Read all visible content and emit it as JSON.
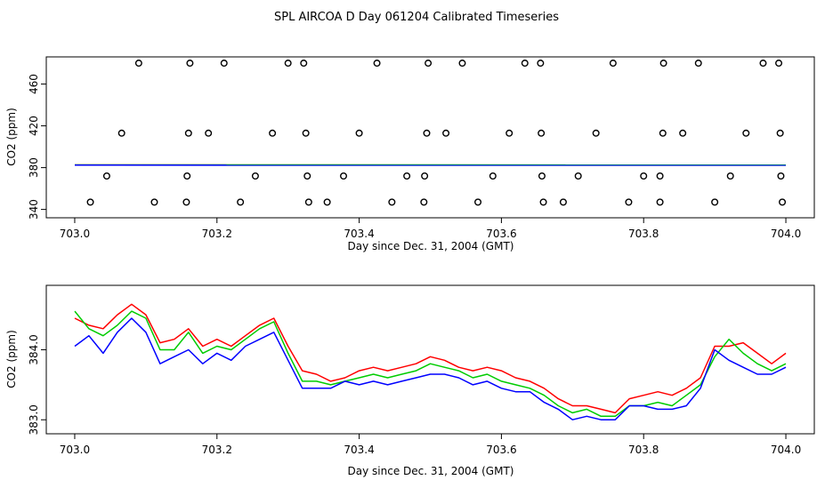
{
  "title": "SPL AIRCOA D  Day 061204  Calibrated Timeseries",
  "chart_data": [
    {
      "type": "scatter",
      "title": "",
      "xlabel": "Day since Dec. 31, 2004 (GMT)",
      "ylabel": "CO2 (ppm)",
      "xlim": [
        702.96,
        704.04
      ],
      "ylim": [
        332,
        486
      ],
      "xticks": [
        703.0,
        703.2,
        703.4,
        703.6,
        703.8,
        704.0
      ],
      "xtick_labels": [
        "703.0",
        "703.2",
        "703.4",
        "703.6",
        "703.8",
        "704.0"
      ],
      "yticks": [
        340,
        380,
        420,
        460
      ],
      "ytick_labels": [
        "340",
        "380",
        "420",
        "460"
      ],
      "points": {
        "y480": [
          703.09,
          703.162,
          703.21,
          703.3,
          703.322,
          703.425,
          703.497,
          703.545,
          703.633,
          703.655,
          703.757,
          703.828,
          703.877,
          703.968,
          703.99
        ],
        "y413": [
          703.066,
          703.16,
          703.188,
          703.278,
          703.325,
          703.4,
          703.495,
          703.522,
          703.611,
          703.656,
          703.733,
          703.827,
          703.855,
          703.944,
          703.992
        ],
        "y372": [
          703.045,
          703.158,
          703.254,
          703.327,
          703.378,
          703.467,
          703.492,
          703.588,
          703.657,
          703.708,
          703.8,
          703.823,
          703.922,
          703.993
        ],
        "y347": [
          703.022,
          703.112,
          703.157,
          703.233,
          703.329,
          703.355,
          703.446,
          703.491,
          703.567,
          703.659,
          703.687,
          703.779,
          703.823,
          703.9,
          703.995
        ]
      },
      "flat_series": [
        {
          "name": "red",
          "color": "#ff0000",
          "x": [
            703.0,
            704.0
          ],
          "y": [
            382.5,
            382.4
          ]
        },
        {
          "name": "green",
          "color": "#00cc00",
          "x": [
            703.0,
            704.0
          ],
          "y": [
            382.6,
            382.5
          ]
        },
        {
          "name": "blue",
          "color": "#0000ff",
          "x": [
            703.0,
            704.0
          ],
          "y": [
            382.4,
            382.3
          ]
        }
      ]
    },
    {
      "type": "line",
      "title": "",
      "xlabel": "Day since Dec. 31, 2004 (GMT)",
      "ylabel": "CO2 (ppm)",
      "xlim": [
        702.96,
        704.04
      ],
      "ylim": [
        382.8,
        384.92
      ],
      "xticks": [
        703.0,
        703.2,
        703.4,
        703.6,
        703.8,
        704.0
      ],
      "xtick_labels": [
        "703.0",
        "703.2",
        "703.4",
        "703.6",
        "703.8",
        "704.0"
      ],
      "yticks": [
        383.0,
        384.0
      ],
      "ytick_labels": [
        "383.0",
        "384.0"
      ],
      "x": [
        703.0,
        703.02,
        703.04,
        703.06,
        703.08,
        703.1,
        703.12,
        703.14,
        703.16,
        703.18,
        703.2,
        703.22,
        703.24,
        703.26,
        703.28,
        703.3,
        703.32,
        703.34,
        703.36,
        703.38,
        703.4,
        703.42,
        703.44,
        703.46,
        703.48,
        703.5,
        703.52,
        703.54,
        703.56,
        703.58,
        703.6,
        703.62,
        703.64,
        703.66,
        703.68,
        703.7,
        703.72,
        703.74,
        703.76,
        703.78,
        703.8,
        703.82,
        703.84,
        703.86,
        703.88,
        703.9,
        703.92,
        703.94,
        703.96,
        703.98,
        704.0
      ],
      "series": [
        {
          "name": "red",
          "color": "#ff0000",
          "values": [
            384.45,
            384.35,
            384.3,
            384.5,
            384.65,
            384.5,
            384.1,
            384.15,
            384.3,
            384.05,
            384.15,
            384.05,
            384.2,
            384.35,
            384.45,
            384.05,
            383.7,
            383.65,
            383.55,
            383.6,
            383.7,
            383.75,
            383.7,
            383.75,
            383.8,
            383.9,
            383.85,
            383.75,
            383.7,
            383.75,
            383.7,
            383.6,
            383.55,
            383.45,
            383.3,
            383.2,
            383.2,
            383.15,
            383.1,
            383.3,
            383.35,
            383.4,
            383.35,
            383.45,
            383.6,
            384.05,
            384.05,
            384.1,
            383.95,
            383.8,
            383.95
          ]
        },
        {
          "name": "green",
          "color": "#00cc00",
          "values": [
            384.55,
            384.3,
            384.2,
            384.35,
            384.55,
            384.45,
            384.0,
            384.0,
            384.25,
            383.95,
            384.05,
            384.0,
            384.15,
            384.3,
            384.4,
            383.95,
            383.55,
            383.55,
            383.5,
            383.55,
            383.6,
            383.65,
            383.6,
            383.65,
            383.7,
            383.8,
            383.75,
            383.7,
            383.6,
            383.65,
            383.55,
            383.5,
            383.45,
            383.35,
            383.2,
            383.1,
            383.15,
            383.05,
            383.05,
            383.2,
            383.2,
            383.25,
            383.2,
            383.35,
            383.5,
            383.9,
            384.15,
            383.95,
            383.8,
            383.7,
            383.8
          ]
        },
        {
          "name": "blue",
          "color": "#0000ff",
          "values": [
            384.05,
            384.2,
            383.95,
            384.25,
            384.45,
            384.25,
            383.8,
            383.9,
            384.0,
            383.8,
            383.95,
            383.85,
            384.05,
            384.15,
            384.25,
            383.85,
            383.45,
            383.45,
            383.45,
            383.55,
            383.5,
            383.55,
            383.5,
            383.55,
            383.6,
            383.65,
            383.65,
            383.6,
            383.5,
            383.55,
            383.45,
            383.4,
            383.4,
            383.25,
            383.15,
            383.0,
            383.05,
            383.0,
            383.0,
            383.2,
            383.2,
            383.15,
            383.15,
            383.2,
            383.45,
            384.0,
            383.85,
            383.75,
            383.65,
            383.65,
            383.75
          ]
        }
      ]
    }
  ]
}
